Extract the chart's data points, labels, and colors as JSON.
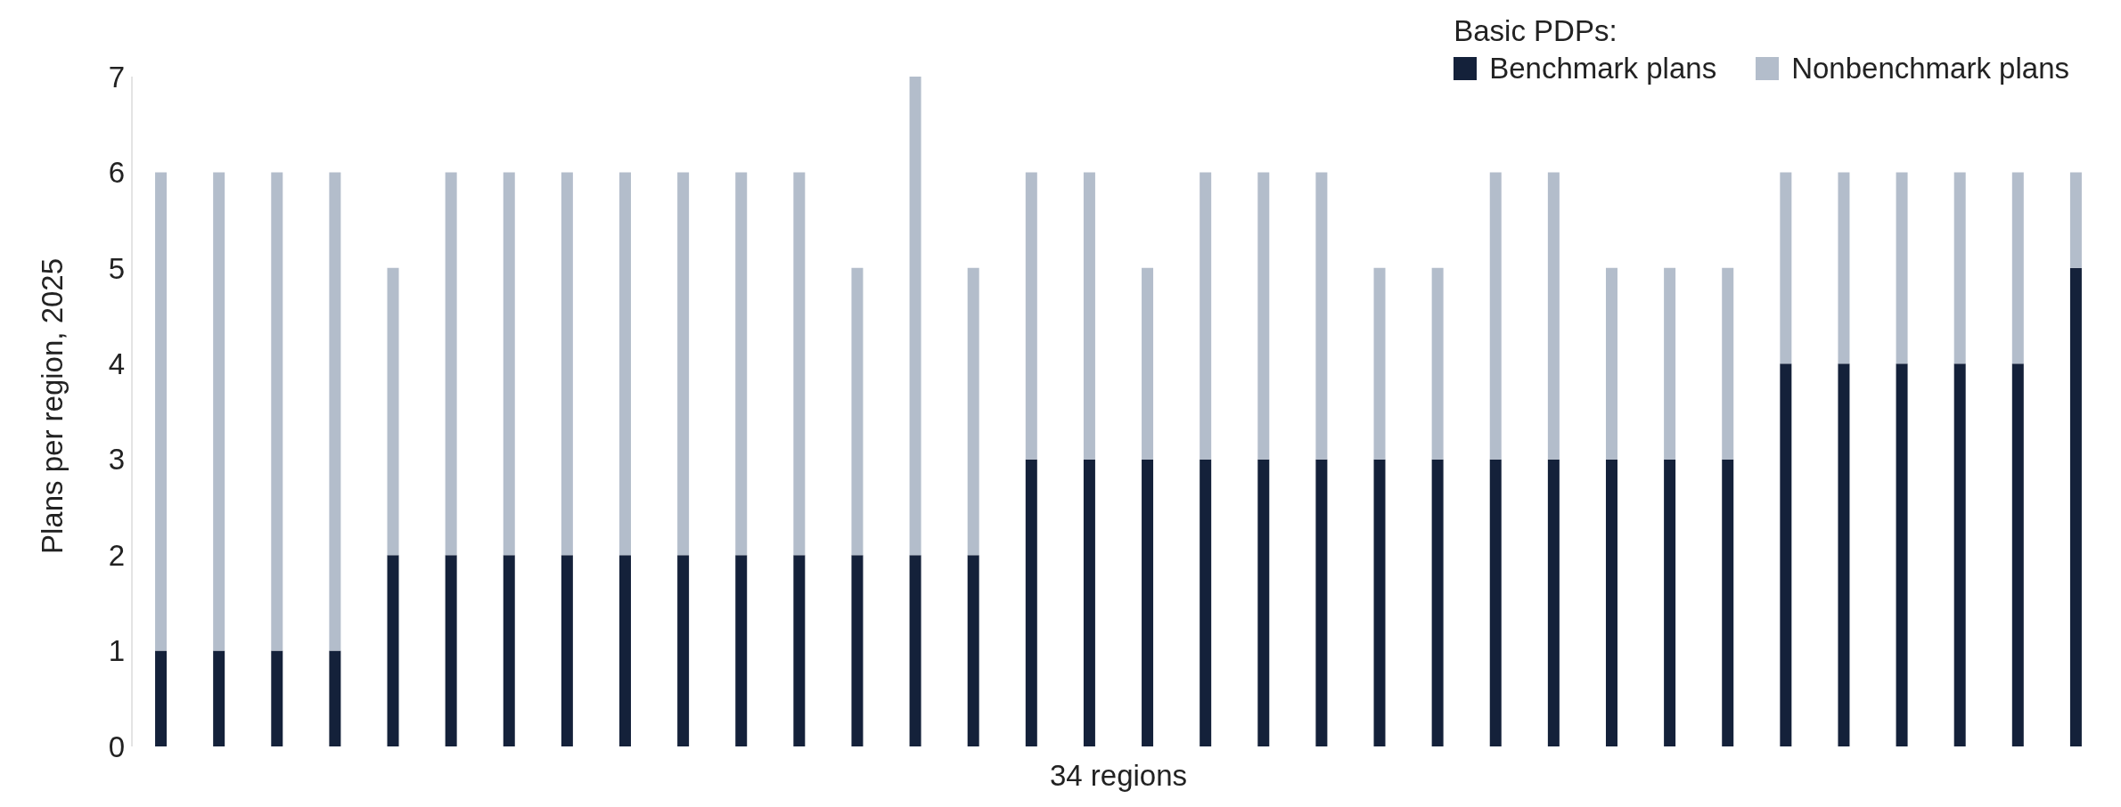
{
  "chart_data": {
    "type": "bar",
    "stacked": true,
    "xlabel": "34 regions",
    "ylabel": "Plans per region, 2025",
    "legend_title": "Basic PDPs:",
    "legend": "top right",
    "grid": false,
    "categories": [
      null,
      null,
      null,
      null,
      null,
      null,
      null,
      null,
      null,
      null,
      null,
      null,
      null,
      null,
      null,
      null,
      null,
      null,
      null,
      null,
      null,
      null,
      null,
      null,
      null,
      null,
      null,
      null,
      null,
      null,
      null,
      null,
      null,
      null
    ],
    "series": [
      {
        "name": "Benchmark plans",
        "color": "#14213a",
        "values": [
          1,
          1,
          1,
          1,
          2,
          2,
          2,
          2,
          2,
          2,
          2,
          2,
          2,
          2,
          2,
          3,
          3,
          3,
          3,
          3,
          3,
          3,
          3,
          3,
          3,
          3,
          3,
          3,
          4,
          4,
          4,
          4,
          4,
          5
        ]
      },
      {
        "name": "Nonbenchmark plans",
        "color": "#b3bdcb",
        "values": [
          5,
          5,
          5,
          5,
          3,
          4,
          4,
          4,
          4,
          4,
          4,
          4,
          3,
          5,
          3,
          3,
          3,
          2,
          3,
          3,
          3,
          2,
          2,
          3,
          3,
          2,
          2,
          2,
          2,
          2,
          2,
          2,
          2,
          1
        ]
      }
    ],
    "ylim": [
      0,
      7
    ],
    "yticks": [
      0,
      1,
      2,
      3,
      4,
      5,
      6,
      7
    ]
  }
}
